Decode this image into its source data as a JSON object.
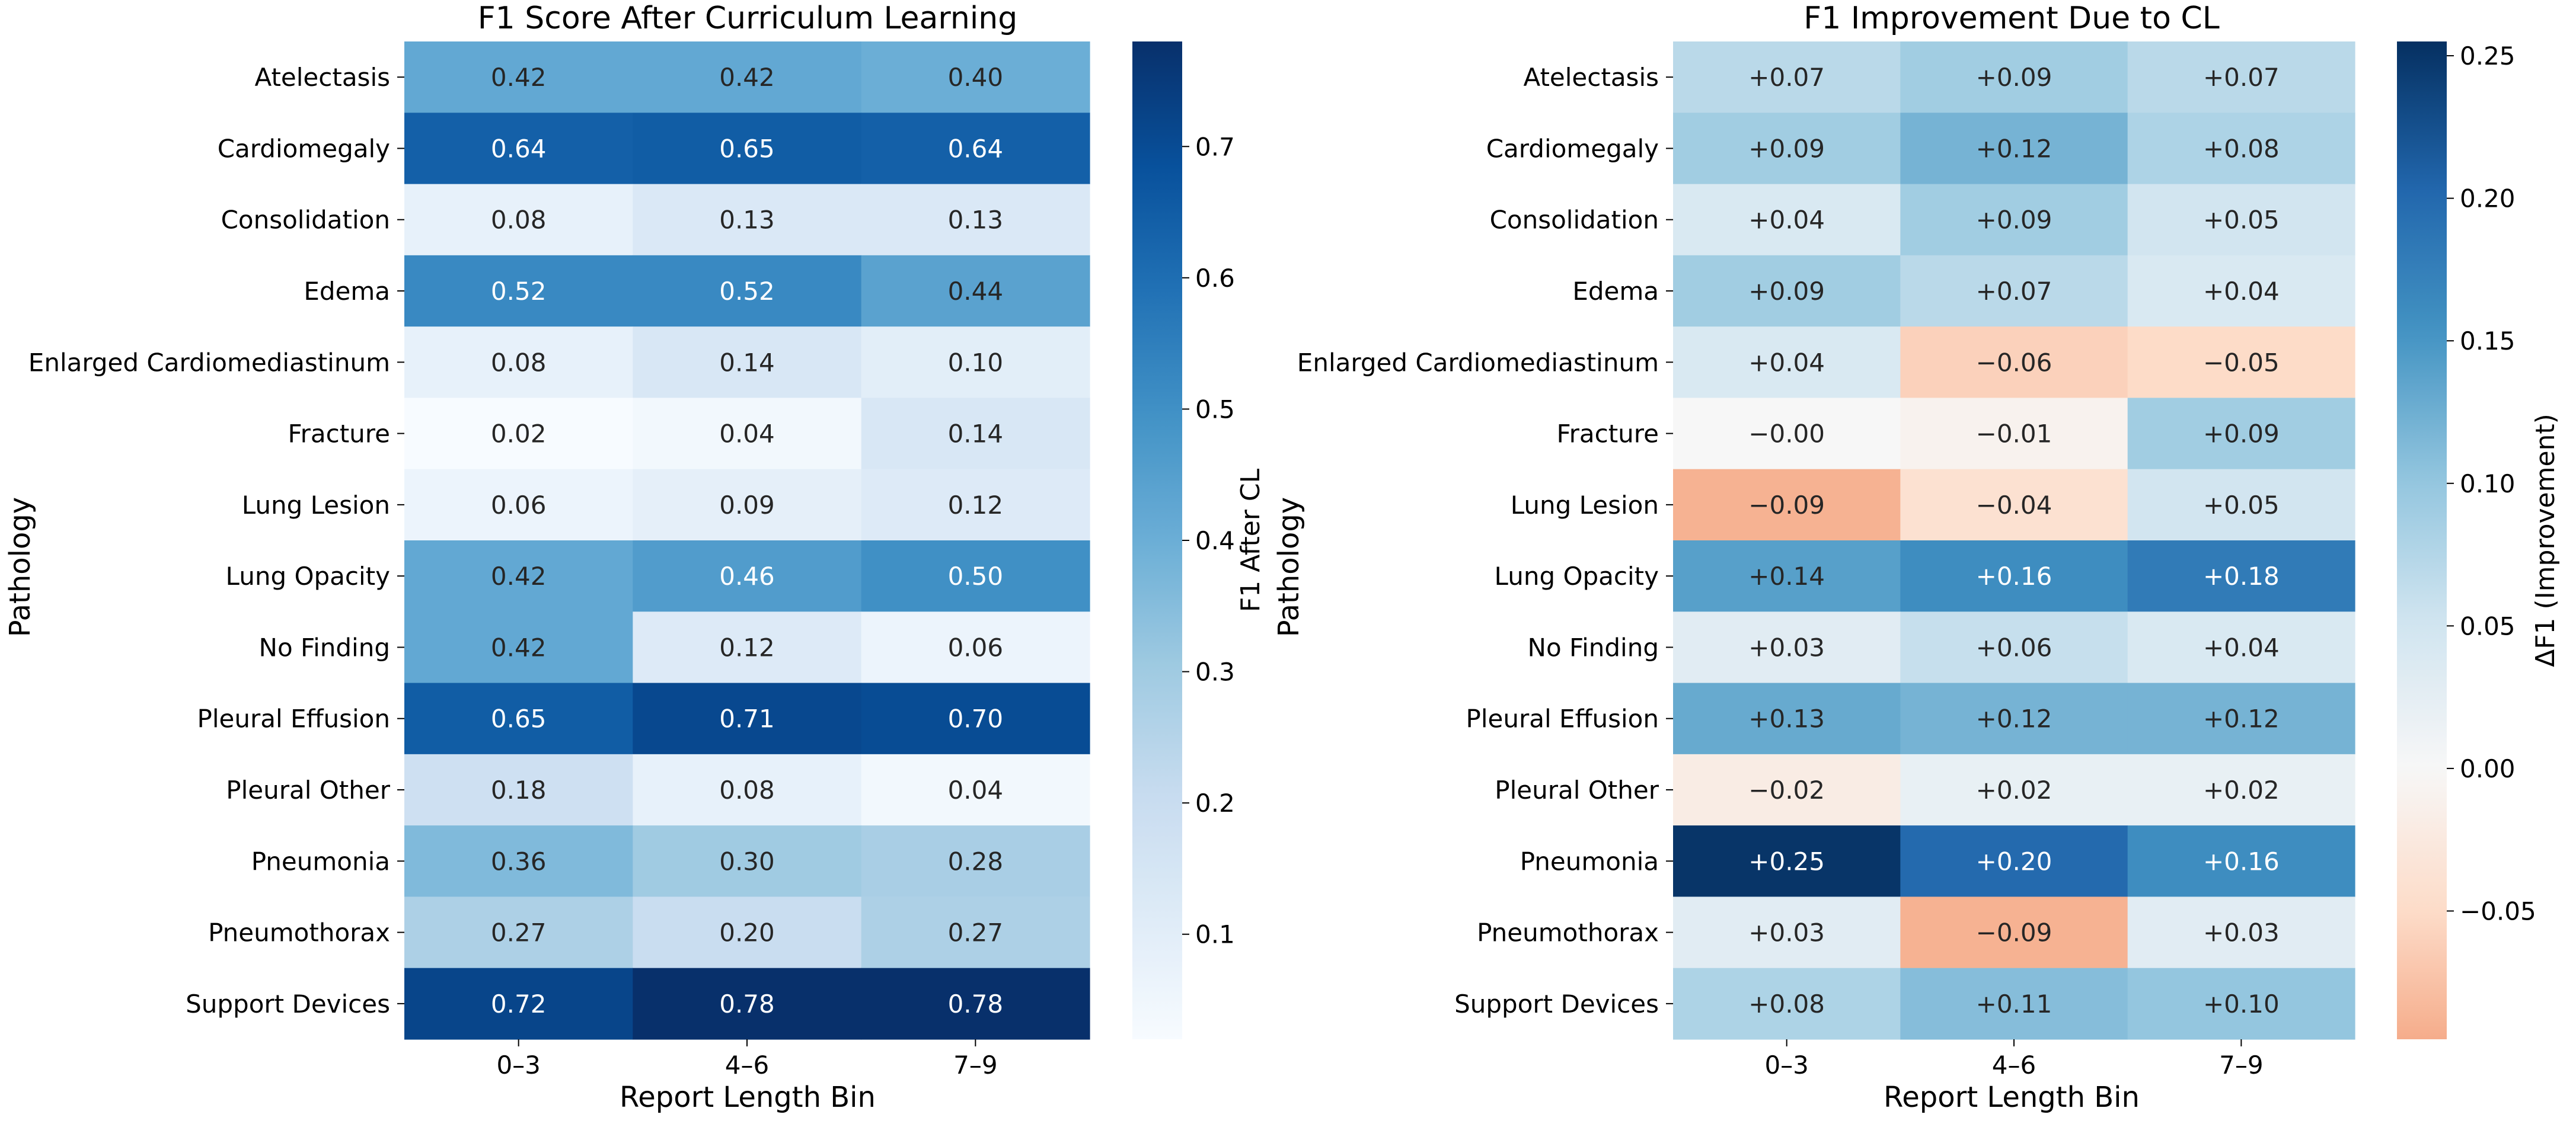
{
  "chart_data": [
    {
      "type": "heatmap",
      "title": "F1 Score After Curriculum Learning",
      "xlabel": "Report Length Bin",
      "ylabel": "Pathology",
      "colorbar_label": "F1 After CL",
      "colormap": "Blues",
      "value_range": [
        0.02,
        0.78
      ],
      "colorbar_ticks": [
        "0.1",
        "0.2",
        "0.3",
        "0.4",
        "0.5",
        "0.6",
        "0.7"
      ],
      "x_categories": [
        "0–3",
        "4–6",
        "7–9"
      ],
      "y_categories": [
        "Atelectasis",
        "Cardiomegaly",
        "Consolidation",
        "Edema",
        "Enlarged Cardiomediastinum",
        "Fracture",
        "Lung Lesion",
        "Lung Opacity",
        "No Finding",
        "Pleural Effusion",
        "Pleural Other",
        "Pneumonia",
        "Pneumothorax",
        "Support Devices"
      ],
      "values": [
        [
          0.42,
          0.42,
          0.4
        ],
        [
          0.64,
          0.65,
          0.64
        ],
        [
          0.08,
          0.13,
          0.13
        ],
        [
          0.52,
          0.52,
          0.44
        ],
        [
          0.08,
          0.14,
          0.1
        ],
        [
          0.02,
          0.04,
          0.14
        ],
        [
          0.06,
          0.09,
          0.12
        ],
        [
          0.42,
          0.46,
          0.5
        ],
        [
          0.42,
          0.12,
          0.06
        ],
        [
          0.65,
          0.71,
          0.7
        ],
        [
          0.18,
          0.08,
          0.04
        ],
        [
          0.36,
          0.3,
          0.28
        ],
        [
          0.27,
          0.2,
          0.27
        ],
        [
          0.72,
          0.78,
          0.78
        ]
      ],
      "annotations": [
        [
          "0.42",
          "0.42",
          "0.40"
        ],
        [
          "0.64",
          "0.65",
          "0.64"
        ],
        [
          "0.08",
          "0.13",
          "0.13"
        ],
        [
          "0.52",
          "0.52",
          "0.44"
        ],
        [
          "0.08",
          "0.14",
          "0.10"
        ],
        [
          "0.02",
          "0.04",
          "0.14"
        ],
        [
          "0.06",
          "0.09",
          "0.12"
        ],
        [
          "0.42",
          "0.46",
          "0.50"
        ],
        [
          "0.42",
          "0.12",
          "0.06"
        ],
        [
          "0.65",
          "0.71",
          "0.70"
        ],
        [
          "0.18",
          "0.08",
          "0.04"
        ],
        [
          "0.36",
          "0.30",
          "0.28"
        ],
        [
          "0.27",
          "0.20",
          "0.27"
        ],
        [
          "0.72",
          "0.78",
          "0.78"
        ]
      ]
    },
    {
      "type": "heatmap",
      "title": "F1 Improvement Due to CL",
      "xlabel": "Report Length Bin",
      "ylabel": "Pathology",
      "colorbar_label": "ΔF1 (Improvement)",
      "colormap": "RdBu (centered at 0)",
      "value_range": [
        -0.095,
        0.255
      ],
      "colorbar_ticks": [
        "−0.05",
        "0.00",
        "0.05",
        "0.10",
        "0.15",
        "0.20",
        "0.25"
      ],
      "x_categories": [
        "0–3",
        "4–6",
        "7–9"
      ],
      "y_categories": [
        "Atelectasis",
        "Cardiomegaly",
        "Consolidation",
        "Edema",
        "Enlarged Cardiomediastinum",
        "Fracture",
        "Lung Lesion",
        "Lung Opacity",
        "No Finding",
        "Pleural Effusion",
        "Pleural Other",
        "Pneumonia",
        "Pneumothorax",
        "Support Devices"
      ],
      "values": [
        [
          0.07,
          0.09,
          0.07
        ],
        [
          0.09,
          0.12,
          0.08
        ],
        [
          0.04,
          0.09,
          0.05
        ],
        [
          0.09,
          0.07,
          0.04
        ],
        [
          0.04,
          -0.06,
          -0.05
        ],
        [
          -0.0,
          -0.01,
          0.09
        ],
        [
          -0.09,
          -0.04,
          0.05
        ],
        [
          0.14,
          0.16,
          0.18
        ],
        [
          0.03,
          0.06,
          0.04
        ],
        [
          0.13,
          0.12,
          0.12
        ],
        [
          -0.02,
          0.02,
          0.02
        ],
        [
          0.25,
          0.2,
          0.16
        ],
        [
          0.03,
          -0.09,
          0.03
        ],
        [
          0.08,
          0.11,
          0.1
        ]
      ],
      "annotations": [
        [
          "+0.07",
          "+0.09",
          "+0.07"
        ],
        [
          "+0.09",
          "+0.12",
          "+0.08"
        ],
        [
          "+0.04",
          "+0.09",
          "+0.05"
        ],
        [
          "+0.09",
          "+0.07",
          "+0.04"
        ],
        [
          "+0.04",
          "−0.06",
          "−0.05"
        ],
        [
          "−0.00",
          "−0.01",
          "+0.09"
        ],
        [
          "−0.09",
          "−0.04",
          "+0.05"
        ],
        [
          "+0.14",
          "+0.16",
          "+0.18"
        ],
        [
          "+0.03",
          "+0.06",
          "+0.04"
        ],
        [
          "+0.13",
          "+0.12",
          "+0.12"
        ],
        [
          "−0.02",
          "+0.02",
          "+0.02"
        ],
        [
          "+0.25",
          "+0.20",
          "+0.16"
        ],
        [
          "+0.03",
          "−0.09",
          "+0.03"
        ],
        [
          "+0.08",
          "+0.11",
          "+0.10"
        ]
      ]
    }
  ]
}
